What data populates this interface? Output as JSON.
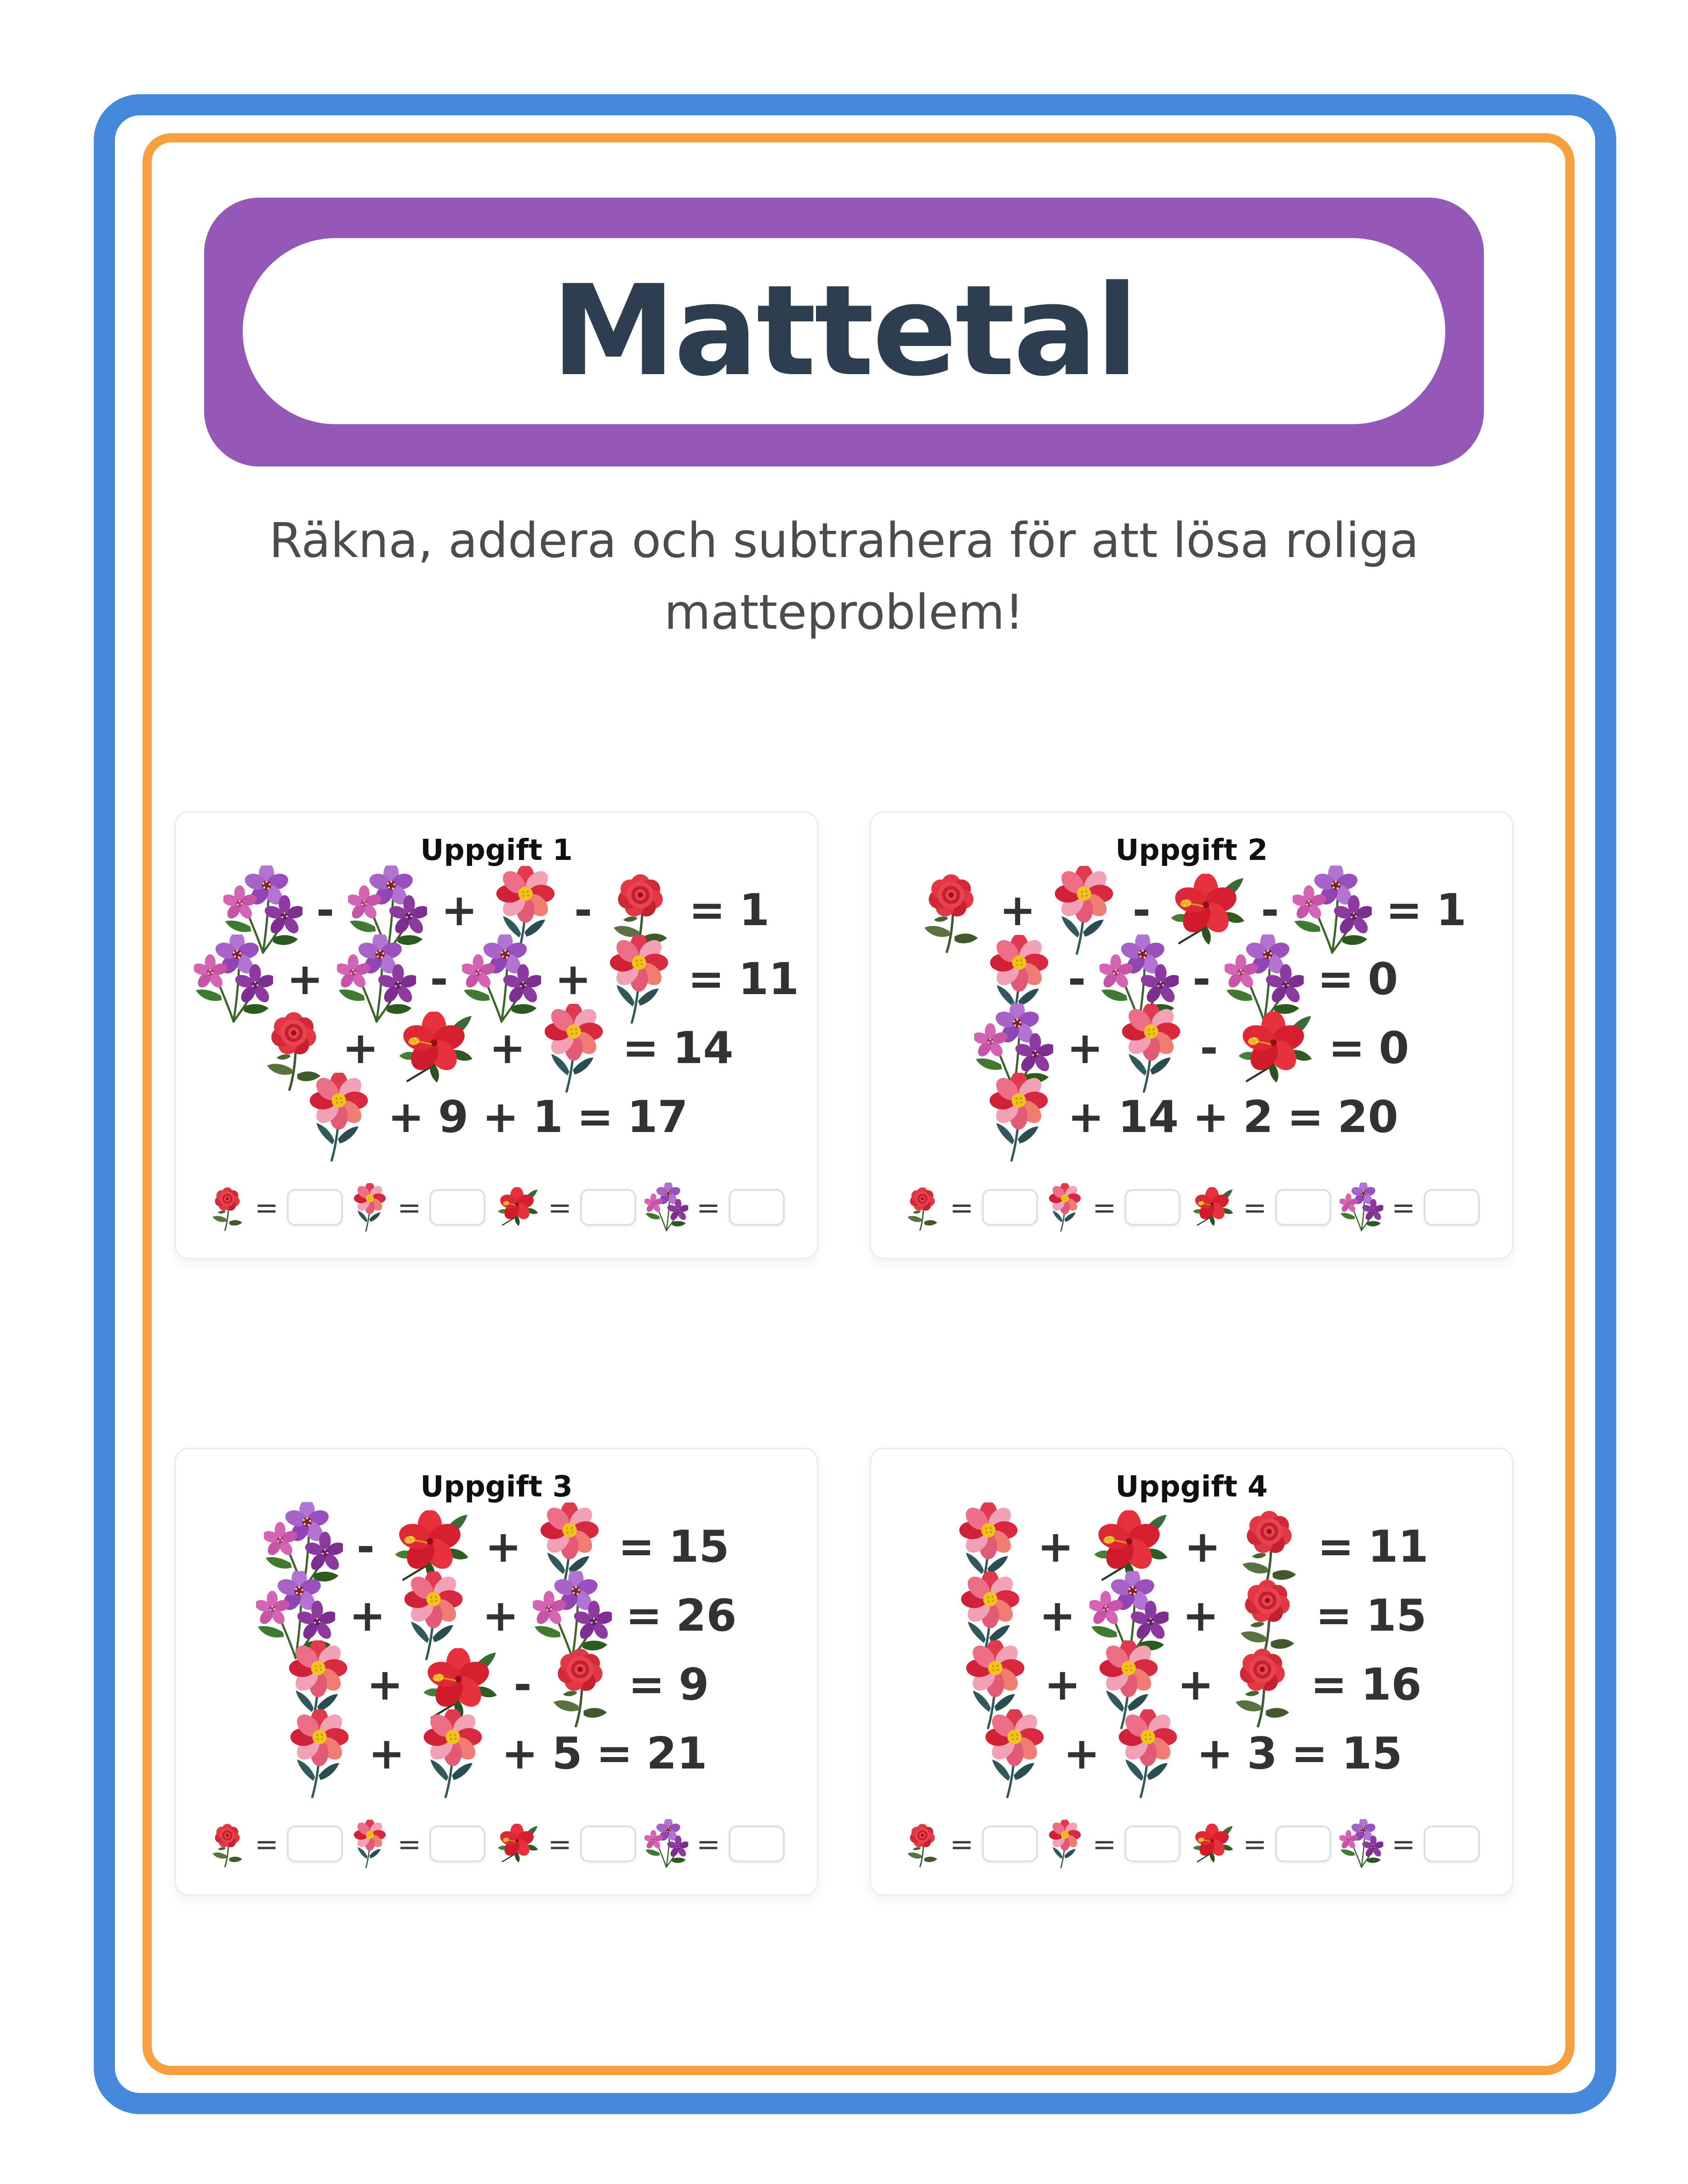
{
  "page": {
    "title": "Mattetal",
    "subtitle_line1": "Räkna, addera och subtrahera för att lösa roliga",
    "subtitle_line2": "matteproblem!"
  },
  "answer_equals": "=",
  "flower_types": [
    "rose",
    "cosmos",
    "hibiscus",
    "bouquet"
  ],
  "colors": {
    "outer_frame": "#4589dc",
    "inner_frame": "#f89f40",
    "header_bg": "#9458b6",
    "title_text": "#2d3e50",
    "subtitle_text": "#4c4c4c",
    "equation_text": "#323232",
    "card_border": "#ebebeb",
    "answer_box_border": "#dbe0e5"
  },
  "cards": [
    {
      "title": "Uppgift 1",
      "rows": [
        [
          "bouquet",
          "-",
          "bouquet",
          "+",
          "cosmos",
          "-",
          "rose",
          "=",
          "1"
        ],
        [
          "bouquet",
          "+",
          "bouquet",
          "-",
          "bouquet",
          "+",
          "cosmos",
          "=",
          "11"
        ],
        [
          "rose",
          "+",
          "hibiscus",
          "+",
          "cosmos",
          "=",
          "14"
        ],
        [
          "cosmos",
          "+",
          "9",
          "+",
          "1",
          "=",
          "17"
        ]
      ],
      "answers": [
        "rose",
        "cosmos",
        "hibiscus",
        "bouquet"
      ]
    },
    {
      "title": "Uppgift 2",
      "rows": [
        [
          "rose",
          "+",
          "cosmos",
          "-",
          "hibiscus",
          "-",
          "bouquet",
          "=",
          "1"
        ],
        [
          "cosmos",
          "-",
          "bouquet",
          "-",
          "bouquet",
          "=",
          "0"
        ],
        [
          "bouquet",
          "+",
          "cosmos",
          "-",
          "hibiscus",
          "=",
          "0"
        ],
        [
          "cosmos",
          "+",
          "14",
          "+",
          "2",
          "=",
          "20"
        ]
      ],
      "answers": [
        "rose",
        "cosmos",
        "hibiscus",
        "bouquet"
      ]
    },
    {
      "title": "Uppgift 3",
      "rows": [
        [
          "bouquet",
          "-",
          "hibiscus",
          "+",
          "cosmos",
          "=",
          "15"
        ],
        [
          "bouquet",
          "+",
          "cosmos",
          "+",
          "bouquet",
          "=",
          "26"
        ],
        [
          "cosmos",
          "+",
          "hibiscus",
          "-",
          "rose",
          "=",
          "9"
        ],
        [
          "cosmos",
          "+",
          "cosmos",
          "+",
          "5",
          "=",
          "21"
        ]
      ],
      "answers": [
        "rose",
        "cosmos",
        "hibiscus",
        "bouquet"
      ]
    },
    {
      "title": "Uppgift 4",
      "rows": [
        [
          "cosmos",
          "+",
          "hibiscus",
          "+",
          "rose",
          "=",
          "11"
        ],
        [
          "cosmos",
          "+",
          "bouquet",
          "+",
          "rose",
          "=",
          "15"
        ],
        [
          "cosmos",
          "+",
          "cosmos",
          "+",
          "rose",
          "=",
          "16"
        ],
        [
          "cosmos",
          "+",
          "cosmos",
          "+",
          "3",
          "=",
          "15"
        ]
      ],
      "answers": [
        "rose",
        "cosmos",
        "hibiscus",
        "bouquet"
      ]
    }
  ]
}
